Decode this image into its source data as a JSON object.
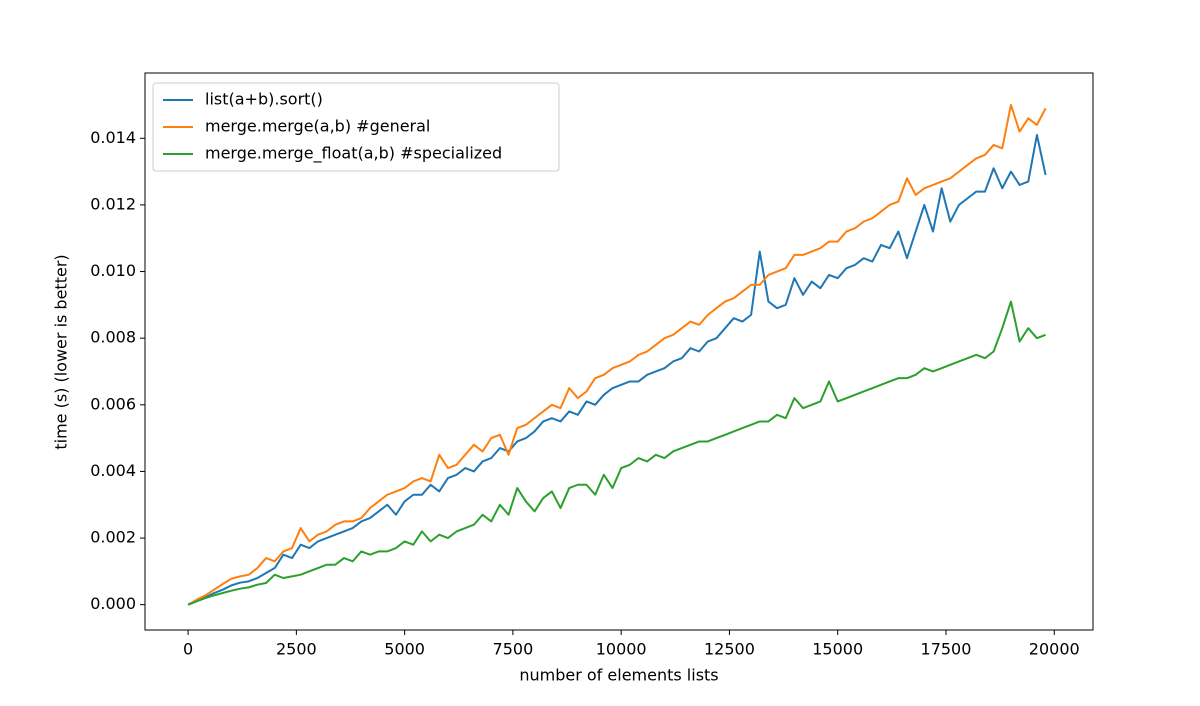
{
  "chart_data": {
    "type": "line",
    "x_label": "number of elements lists",
    "y_label": "time (s) (lower is better)",
    "x": [
      0,
      200,
      400,
      600,
      800,
      1000,
      1200,
      1400,
      1600,
      1800,
      2000,
      2200,
      2400,
      2600,
      2800,
      3000,
      3200,
      3400,
      3600,
      3800,
      4000,
      4200,
      4400,
      4600,
      4800,
      5000,
      5200,
      5400,
      5600,
      5800,
      6000,
      6200,
      6400,
      6600,
      6800,
      7000,
      7200,
      7400,
      7600,
      7800,
      8000,
      8200,
      8400,
      8600,
      8800,
      9000,
      9200,
      9400,
      9600,
      9800,
      10000,
      10200,
      10400,
      10600,
      10800,
      11000,
      11200,
      11400,
      11600,
      11800,
      12000,
      12200,
      12400,
      12600,
      12800,
      13000,
      13200,
      13400,
      13600,
      13800,
      14000,
      14200,
      14400,
      14600,
      14800,
      15000,
      15200,
      15400,
      15600,
      15800,
      16000,
      16200,
      16400,
      16600,
      16800,
      17000,
      17200,
      17400,
      17600,
      17800,
      18000,
      18200,
      18400,
      18600,
      18800,
      19000,
      19200,
      19400,
      19600,
      19800
    ],
    "series": [
      {
        "name": "list(a+b).sort()",
        "color": "#1f77b4",
        "values": [
          0,
          0.00012,
          0.00022,
          0.00035,
          0.00045,
          0.00058,
          0.00066,
          0.0007,
          0.0008,
          0.00095,
          0.0011,
          0.0015,
          0.0014,
          0.0018,
          0.0017,
          0.0019,
          0.002,
          0.0021,
          0.0022,
          0.0023,
          0.0025,
          0.0026,
          0.0028,
          0.003,
          0.0027,
          0.0031,
          0.0033,
          0.0033,
          0.0036,
          0.0034,
          0.0038,
          0.0039,
          0.0041,
          0.004,
          0.0043,
          0.0044,
          0.0047,
          0.0046,
          0.0049,
          0.005,
          0.0052,
          0.0055,
          0.0056,
          0.0055,
          0.0058,
          0.0057,
          0.0061,
          0.006,
          0.0063,
          0.0065,
          0.0066,
          0.0067,
          0.0067,
          0.0069,
          0.007,
          0.0071,
          0.0073,
          0.0074,
          0.0077,
          0.0076,
          0.0079,
          0.008,
          0.0083,
          0.0086,
          0.0085,
          0.0087,
          0.0106,
          0.0091,
          0.0089,
          0.009,
          0.0098,
          0.0093,
          0.0097,
          0.0095,
          0.0099,
          0.0098,
          0.0101,
          0.0102,
          0.0104,
          0.0103,
          0.0108,
          0.0107,
          0.0112,
          0.0104,
          0.0112,
          0.012,
          0.0112,
          0.0125,
          0.0115,
          0.012,
          0.0122,
          0.0124,
          0.0124,
          0.0131,
          0.0125,
          0.013,
          0.0126,
          0.0127,
          0.0141,
          0.0129
        ]
      },
      {
        "name": "merge.merge(a,b) #general",
        "color": "#ff7f0e",
        "values": [
          0,
          0.00015,
          0.00028,
          0.00045,
          0.00062,
          0.00078,
          0.00085,
          0.0009,
          0.0011,
          0.0014,
          0.0013,
          0.0016,
          0.0017,
          0.0023,
          0.0019,
          0.0021,
          0.0022,
          0.0024,
          0.0025,
          0.0025,
          0.0026,
          0.0029,
          0.0031,
          0.0033,
          0.0034,
          0.0035,
          0.0037,
          0.0038,
          0.0037,
          0.0045,
          0.0041,
          0.0042,
          0.0045,
          0.0048,
          0.0046,
          0.005,
          0.0051,
          0.0045,
          0.0053,
          0.0054,
          0.0056,
          0.0058,
          0.006,
          0.0059,
          0.0065,
          0.0062,
          0.0064,
          0.0068,
          0.0069,
          0.0071,
          0.0072,
          0.0073,
          0.0075,
          0.0076,
          0.0078,
          0.008,
          0.0081,
          0.0083,
          0.0085,
          0.0084,
          0.0087,
          0.0089,
          0.0091,
          0.0092,
          0.0094,
          0.0096,
          0.0096,
          0.0099,
          0.01,
          0.0101,
          0.0105,
          0.0105,
          0.0106,
          0.0107,
          0.0109,
          0.0109,
          0.0112,
          0.0113,
          0.0115,
          0.0116,
          0.0118,
          0.012,
          0.0121,
          0.0128,
          0.0123,
          0.0125,
          0.0126,
          0.0127,
          0.0128,
          0.013,
          0.0132,
          0.0134,
          0.0135,
          0.0138,
          0.0137,
          0.015,
          0.0142,
          0.0146,
          0.0144,
          0.0149
        ]
      },
      {
        "name": "merge.merge_float(a,b) #specialized",
        "color": "#2ca02c",
        "values": [
          0,
          0.0001,
          0.0002,
          0.00028,
          0.00035,
          0.00042,
          0.00048,
          0.00052,
          0.0006,
          0.00065,
          0.0009,
          0.0008,
          0.00085,
          0.0009,
          0.001,
          0.0011,
          0.0012,
          0.0012,
          0.0014,
          0.0013,
          0.0016,
          0.0015,
          0.0016,
          0.0016,
          0.0017,
          0.0019,
          0.0018,
          0.0022,
          0.0019,
          0.0021,
          0.002,
          0.0022,
          0.0023,
          0.0024,
          0.0027,
          0.0025,
          0.003,
          0.0027,
          0.0035,
          0.0031,
          0.0028,
          0.0032,
          0.0034,
          0.0029,
          0.0035,
          0.0036,
          0.0036,
          0.0033,
          0.0039,
          0.0035,
          0.0041,
          0.0042,
          0.0044,
          0.0043,
          0.0045,
          0.0044,
          0.0046,
          0.0047,
          0.0048,
          0.0049,
          0.0049,
          0.005,
          0.0051,
          0.0052,
          0.0053,
          0.0054,
          0.0055,
          0.0055,
          0.0057,
          0.0056,
          0.0062,
          0.0059,
          0.006,
          0.0061,
          0.0067,
          0.0061,
          0.0062,
          0.0063,
          0.0064,
          0.0065,
          0.0066,
          0.0067,
          0.0068,
          0.0068,
          0.0069,
          0.0071,
          0.007,
          0.0071,
          0.0072,
          0.0073,
          0.0074,
          0.0075,
          0.0074,
          0.0076,
          0.0083,
          0.0091,
          0.0079,
          0.0083,
          0.008,
          0.0081
        ]
      }
    ],
    "xlim": [
      -995,
      20895
    ],
    "ylim": [
      -0.00076,
      0.01596
    ],
    "xticks": [
      0,
      2500,
      5000,
      7500,
      10000,
      12500,
      15000,
      17500,
      20000
    ],
    "yticks": [
      {
        "value": 0,
        "label": "0.000"
      },
      {
        "value": 0.002,
        "label": "0.002"
      },
      {
        "value": 0.004,
        "label": "0.004"
      },
      {
        "value": 0.006,
        "label": "0.006"
      },
      {
        "value": 0.008,
        "label": "0.008"
      },
      {
        "value": 0.01,
        "label": "0.010"
      },
      {
        "value": 0.012,
        "label": "0.012"
      },
      {
        "value": 0.014,
        "label": "0.014"
      }
    ],
    "legend": "upper left"
  }
}
